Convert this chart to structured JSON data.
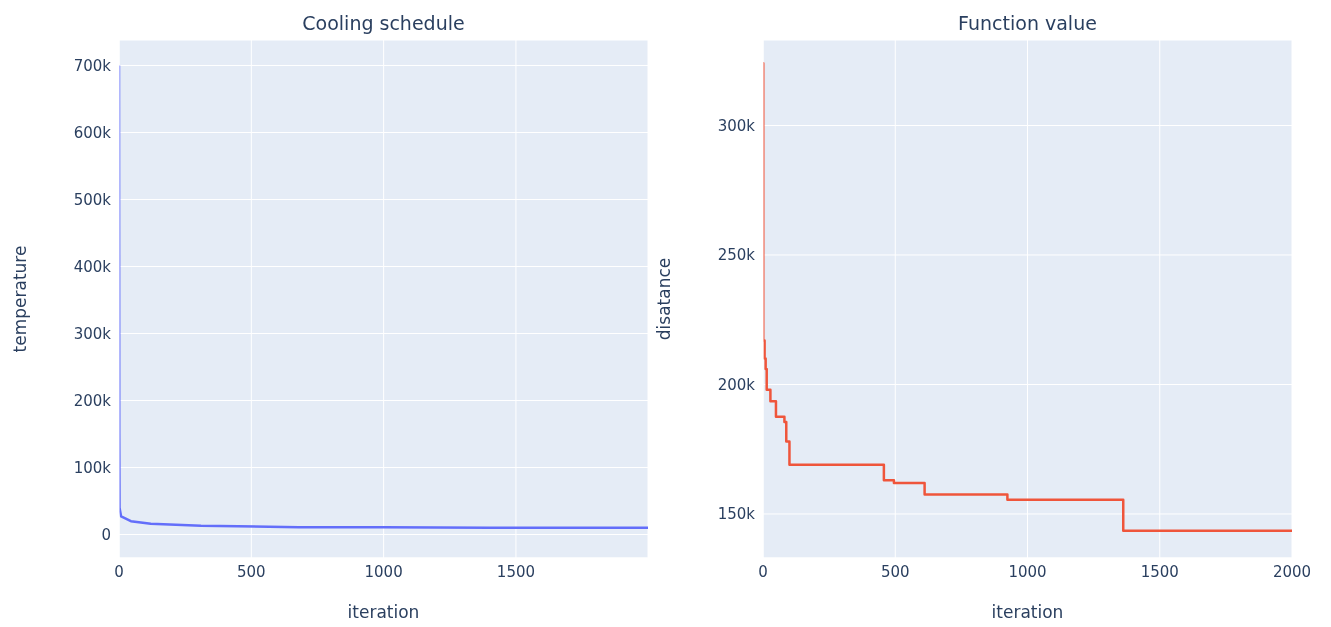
{
  "chart_data": [
    {
      "type": "line",
      "title": "Cooling schedule",
      "xlabel": "iteration",
      "ylabel": "temperature",
      "grid": true,
      "xlim": [
        0,
        1999
      ],
      "xticks": [
        0,
        500,
        1000,
        1500
      ],
      "ylim": [
        -35000,
        738000
      ],
      "yticks": [
        0,
        {
          "value": 100000,
          "label": "100k"
        },
        {
          "value": 200000,
          "label": "200k"
        },
        {
          "value": 300000,
          "label": "300k"
        },
        {
          "value": 400000,
          "label": "400k"
        },
        {
          "value": 500000,
          "label": "500k"
        },
        {
          "value": 600000,
          "label": "600k"
        },
        {
          "value": 700000,
          "label": "700k"
        }
      ],
      "x": [
        0,
        1,
        2,
        8,
        45,
        120,
        310,
        680,
        1000,
        1400,
        1999
      ],
      "series": [
        {
          "color": "#636efa",
          "values": [
            700000,
            150000,
            40000,
            27000,
            20000,
            16000,
            13000,
            11000,
            11000,
            10000,
            10000
          ]
        }
      ]
    },
    {
      "type": "step",
      "title": "Function value",
      "xlabel": "iteration",
      "ylabel": "disatance",
      "grid": true,
      "xlim": [
        0,
        2000
      ],
      "xticks": [
        0,
        500,
        1000,
        1500,
        2000
      ],
      "ylim": [
        133000,
        333000
      ],
      "yticks": [
        {
          "value": 150000,
          "label": "150k"
        },
        {
          "value": 200000,
          "label": "200k"
        },
        {
          "value": 250000,
          "label": "250k"
        },
        {
          "value": 300000,
          "label": "300k"
        }
      ],
      "x": [
        0,
        1,
        6,
        10,
        14,
        28,
        49,
        81,
        88,
        100,
        457,
        495,
        611,
        924,
        1362,
        2000
      ],
      "series": [
        {
          "color": "#ef553b",
          "values": [
            324000,
            217000,
            210000,
            206000,
            198000,
            193500,
            187500,
            185500,
            178000,
            169000,
            163000,
            162000,
            157500,
            155500,
            143500,
            143500
          ]
        }
      ]
    }
  ]
}
